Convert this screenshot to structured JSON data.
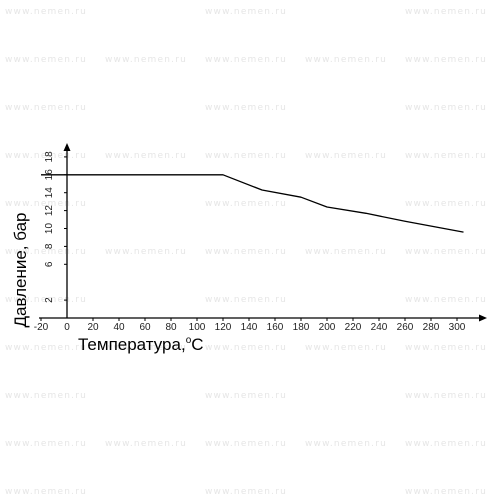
{
  "watermark": "www.nemen.ru",
  "chart_data": {
    "type": "line",
    "xlabel": "Температура,",
    "xlabel_sup": "o",
    "xlabel_unit": "C",
    "ylabel": "Давление, бар",
    "xlim": [
      -20,
      310
    ],
    "ylim": [
      0,
      19
    ],
    "x_ticks": [
      -20,
      0,
      20,
      40,
      60,
      80,
      100,
      120,
      140,
      160,
      180,
      200,
      220,
      240,
      260,
      280,
      300
    ],
    "y_ticks": [
      2,
      6,
      8,
      10,
      12,
      14,
      16,
      18
    ],
    "grid": false,
    "series": [
      {
        "color": "#000000",
        "x": [
          -20,
          0,
          120,
          150,
          180,
          200,
          230,
          260,
          305
        ],
        "y": [
          16,
          16,
          16,
          14.3,
          13.5,
          12.4,
          11.7,
          10.8,
          9.6
        ]
      }
    ]
  }
}
